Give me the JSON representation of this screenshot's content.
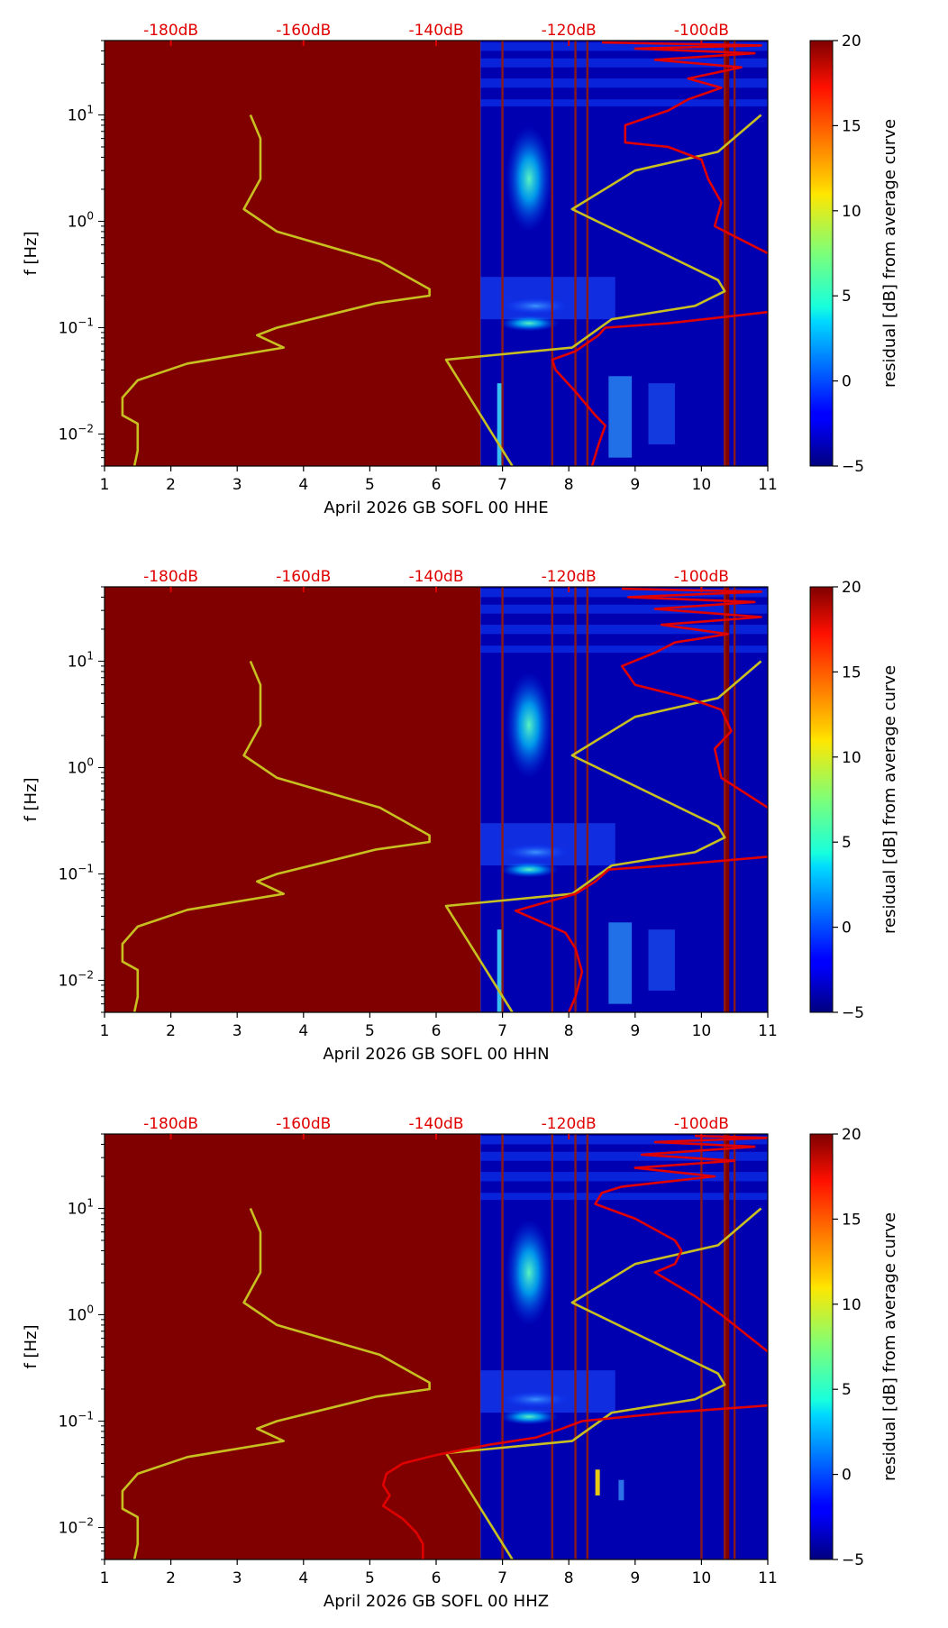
{
  "chart_data": [
    {
      "type": "heatmap",
      "xlabel": "April 2026 GB SOFL 00 HHE",
      "ylabel": "f [Hz]",
      "xlim": [
        1,
        11
      ],
      "ylim": [
        0.005,
        50
      ],
      "yscale": "log",
      "x_ticks": [
        "1",
        "2",
        "3",
        "4",
        "5",
        "6",
        "7",
        "8",
        "9",
        "10",
        "11"
      ],
      "y_ticks": [
        {
          "base": "10",
          "exp": "1",
          "value": 10
        },
        {
          "base": "10",
          "exp": "0",
          "value": 1
        },
        {
          "base": "10",
          "exp": "−1",
          "value": 0.1
        },
        {
          "base": "10",
          "exp": "−2",
          "value": 0.01
        }
      ],
      "top_axis_labels": [
        "-180dB",
        "-160dB",
        "-140dB",
        "-120dB",
        "-100dB"
      ],
      "top_axis_positions": [
        2,
        4,
        6,
        8,
        10
      ],
      "no_data_until_day": 6.67,
      "gap_days": [
        7.0,
        7.75,
        8.1,
        8.28,
        10.35,
        10.5
      ],
      "high_noise_days": [
        10.35,
        10.42
      ],
      "colorbar": {
        "label": "residual [dB] from average curve",
        "min": -5,
        "max": 20,
        "ticks": [
          "20",
          "15",
          "10",
          "5",
          "0",
          "−5"
        ]
      },
      "series": [
        {
          "name": "",
          "color": "#c8c020",
          "points": [
            [
              3.2,
              10
            ],
            [
              3.35,
              6
            ],
            [
              3.35,
              2.5
            ],
            [
              3.1,
              1.3
            ],
            [
              3.6,
              0.8
            ],
            [
              5.15,
              0.42
            ],
            [
              5.9,
              0.23
            ],
            [
              5.9,
              0.2
            ],
            [
              5.1,
              0.17
            ],
            [
              3.6,
              0.1
            ],
            [
              3.3,
              0.085
            ],
            [
              3.7,
              0.065
            ],
            [
              2.25,
              0.046
            ],
            [
              1.5,
              0.032
            ],
            [
              1.27,
              0.022
            ],
            [
              1.27,
              0.015
            ],
            [
              1.5,
              0.0125
            ],
            [
              1.5,
              0.007
            ],
            [
              1.45,
              0.005
            ]
          ]
        },
        {
          "name": "",
          "color": "#c8c020",
          "points": [
            [
              10.9,
              10
            ],
            [
              10.25,
              4.5
            ],
            [
              9.0,
              3.0
            ],
            [
              8.05,
              1.3
            ],
            [
              10.25,
              0.28
            ],
            [
              10.35,
              0.22
            ],
            [
              9.9,
              0.16
            ],
            [
              8.65,
              0.12
            ],
            [
              8.05,
              0.065
            ],
            [
              6.15,
              0.05
            ],
            [
              7.15,
              0.005
            ]
          ]
        },
        {
          "name": "",
          "color": "#e00000",
          "points": [
            [
              11,
              0.14
            ],
            [
              9.5,
              0.11
            ],
            [
              8.55,
              0.1
            ],
            [
              8.45,
              0.085
            ],
            [
              8.1,
              0.06
            ],
            [
              7.75,
              0.05
            ],
            [
              7.8,
              0.04
            ],
            [
              8.1,
              0.025
            ],
            [
              8.4,
              0.015
            ],
            [
              8.55,
              0.012
            ],
            [
              8.45,
              0.008
            ],
            [
              8.35,
              0.005
            ]
          ]
        },
        {
          "name": "",
          "color": "#e00000",
          "points": [
            [
              8.5,
              48
            ],
            [
              10.9,
              45
            ],
            [
              9.0,
              42
            ],
            [
              10.8,
              38
            ],
            [
              9.3,
              33
            ],
            [
              10.6,
              28
            ],
            [
              9.8,
              22
            ],
            [
              10.3,
              18
            ],
            [
              9.8,
              14
            ],
            [
              9.5,
              11
            ],
            [
              8.85,
              8
            ],
            [
              8.85,
              5.5
            ],
            [
              9.5,
              5
            ],
            [
              10.0,
              3.8
            ],
            [
              10.1,
              2.5
            ],
            [
              10.3,
              1.5
            ],
            [
              10.2,
              0.9
            ],
            [
              11,
              0.5
            ]
          ]
        }
      ]
    },
    {
      "type": "heatmap",
      "xlabel": "April 2026 GB SOFL 00 HHN",
      "ylabel": "f [Hz]",
      "xlim": [
        1,
        11
      ],
      "ylim": [
        0.005,
        50
      ],
      "yscale": "log",
      "x_ticks": [
        "1",
        "2",
        "3",
        "4",
        "5",
        "6",
        "7",
        "8",
        "9",
        "10",
        "11"
      ],
      "y_ticks": [
        {
          "base": "10",
          "exp": "1",
          "value": 10
        },
        {
          "base": "10",
          "exp": "0",
          "value": 1
        },
        {
          "base": "10",
          "exp": "−1",
          "value": 0.1
        },
        {
          "base": "10",
          "exp": "−2",
          "value": 0.01
        }
      ],
      "top_axis_labels": [
        "-180dB",
        "-160dB",
        "-140dB",
        "-120dB",
        "-100dB"
      ],
      "top_axis_positions": [
        2,
        4,
        6,
        8,
        10
      ],
      "no_data_until_day": 6.67,
      "gap_days": [
        7.0,
        7.75,
        8.1,
        8.28,
        10.35,
        10.5
      ],
      "high_noise_days": [
        10.35,
        10.42
      ],
      "colorbar": {
        "label": "residual [dB] from average curve",
        "min": -5,
        "max": 20,
        "ticks": [
          "20",
          "15",
          "10",
          "5",
          "0",
          "−5"
        ]
      },
      "series": [
        {
          "name": "",
          "color": "#c8c020",
          "points": [
            [
              3.2,
              10
            ],
            [
              3.35,
              6
            ],
            [
              3.35,
              2.5
            ],
            [
              3.1,
              1.3
            ],
            [
              3.6,
              0.8
            ],
            [
              5.15,
              0.42
            ],
            [
              5.9,
              0.23
            ],
            [
              5.9,
              0.2
            ],
            [
              5.1,
              0.17
            ],
            [
              3.6,
              0.1
            ],
            [
              3.3,
              0.085
            ],
            [
              3.7,
              0.065
            ],
            [
              2.25,
              0.046
            ],
            [
              1.5,
              0.032
            ],
            [
              1.27,
              0.022
            ],
            [
              1.27,
              0.015
            ],
            [
              1.5,
              0.0125
            ],
            [
              1.5,
              0.007
            ],
            [
              1.45,
              0.005
            ]
          ]
        },
        {
          "name": "",
          "color": "#c8c020",
          "points": [
            [
              10.9,
              10
            ],
            [
              10.25,
              4.5
            ],
            [
              9.0,
              3.0
            ],
            [
              8.05,
              1.3
            ],
            [
              10.25,
              0.28
            ],
            [
              10.35,
              0.22
            ],
            [
              9.9,
              0.16
            ],
            [
              8.65,
              0.12
            ],
            [
              8.05,
              0.065
            ],
            [
              6.15,
              0.05
            ],
            [
              7.15,
              0.005
            ]
          ]
        },
        {
          "name": "",
          "color": "#e00000",
          "points": [
            [
              11,
              0.145
            ],
            [
              9.5,
              0.12
            ],
            [
              8.6,
              0.11
            ],
            [
              8.4,
              0.085
            ],
            [
              8.1,
              0.065
            ],
            [
              7.2,
              0.045
            ],
            [
              7.6,
              0.035
            ],
            [
              7.95,
              0.028
            ],
            [
              8.1,
              0.02
            ],
            [
              8.2,
              0.012
            ],
            [
              8.1,
              0.007
            ],
            [
              8.0,
              0.005
            ]
          ]
        },
        {
          "name": "",
          "color": "#e00000",
          "points": [
            [
              8.8,
              48
            ],
            [
              10.9,
              45
            ],
            [
              8.9,
              40
            ],
            [
              10.8,
              36
            ],
            [
              9.3,
              31
            ],
            [
              10.9,
              26
            ],
            [
              9.4,
              22
            ],
            [
              10.4,
              18
            ],
            [
              9.6,
              15
            ],
            [
              9.3,
              12
            ],
            [
              8.8,
              9
            ],
            [
              9.0,
              6
            ],
            [
              9.8,
              4.5
            ],
            [
              10.3,
              3.5
            ],
            [
              10.45,
              2.2
            ],
            [
              10.2,
              1.5
            ],
            [
              10.3,
              0.8
            ],
            [
              11,
              0.42
            ]
          ]
        }
      ]
    },
    {
      "type": "heatmap",
      "xlabel": "April 2026 GB SOFL 00 HHZ",
      "ylabel": "f [Hz]",
      "xlim": [
        1,
        11
      ],
      "ylim": [
        0.005,
        50
      ],
      "yscale": "log",
      "x_ticks": [
        "1",
        "2",
        "3",
        "4",
        "5",
        "6",
        "7",
        "8",
        "9",
        "10",
        "11"
      ],
      "y_ticks": [
        {
          "base": "10",
          "exp": "1",
          "value": 10
        },
        {
          "base": "10",
          "exp": "0",
          "value": 1
        },
        {
          "base": "10",
          "exp": "−1",
          "value": 0.1
        },
        {
          "base": "10",
          "exp": "−2",
          "value": 0.01
        }
      ],
      "top_axis_labels": [
        "-180dB",
        "-160dB",
        "-140dB",
        "-120dB",
        "-100dB"
      ],
      "top_axis_positions": [
        2,
        4,
        6,
        8,
        10
      ],
      "no_data_until_day": 6.67,
      "gap_days": [
        7.0,
        7.75,
        8.1,
        8.28,
        10.0,
        10.35,
        10.5
      ],
      "high_noise_days": [
        10.35,
        10.42
      ],
      "colorbar": {
        "label": "residual [dB] from average curve",
        "min": -5,
        "max": 20,
        "ticks": [
          "20",
          "15",
          "10",
          "5",
          "0",
          "−5"
        ]
      },
      "series": [
        {
          "name": "",
          "color": "#c8c020",
          "points": [
            [
              3.2,
              10
            ],
            [
              3.35,
              6
            ],
            [
              3.35,
              2.5
            ],
            [
              3.1,
              1.3
            ],
            [
              3.6,
              0.8
            ],
            [
              5.15,
              0.42
            ],
            [
              5.9,
              0.23
            ],
            [
              5.9,
              0.2
            ],
            [
              5.1,
              0.17
            ],
            [
              3.6,
              0.1
            ],
            [
              3.3,
              0.085
            ],
            [
              3.7,
              0.065
            ],
            [
              2.25,
              0.046
            ],
            [
              1.5,
              0.032
            ],
            [
              1.27,
              0.022
            ],
            [
              1.27,
              0.015
            ],
            [
              1.5,
              0.0125
            ],
            [
              1.5,
              0.007
            ],
            [
              1.45,
              0.005
            ]
          ]
        },
        {
          "name": "",
          "color": "#c8c020",
          "points": [
            [
              10.9,
              10
            ],
            [
              10.25,
              4.5
            ],
            [
              9.0,
              3.0
            ],
            [
              8.05,
              1.3
            ],
            [
              10.25,
              0.28
            ],
            [
              10.35,
              0.22
            ],
            [
              9.9,
              0.16
            ],
            [
              8.65,
              0.12
            ],
            [
              8.05,
              0.065
            ],
            [
              6.15,
              0.05
            ],
            [
              7.15,
              0.005
            ]
          ]
        },
        {
          "name": "",
          "color": "#e00000",
          "points": [
            [
              11,
              0.14
            ],
            [
              9.5,
              0.12
            ],
            [
              8.2,
              0.1
            ],
            [
              7.9,
              0.085
            ],
            [
              7.5,
              0.07
            ],
            [
              6.8,
              0.06
            ],
            [
              6.0,
              0.048
            ],
            [
              5.5,
              0.04
            ],
            [
              5.25,
              0.032
            ],
            [
              5.2,
              0.025
            ],
            [
              5.3,
              0.02
            ],
            [
              5.2,
              0.016
            ],
            [
              5.5,
              0.012
            ],
            [
              5.7,
              0.009
            ],
            [
              5.8,
              0.007
            ],
            [
              5.8,
              0.005
            ]
          ]
        },
        {
          "name": "",
          "color": "#e00000",
          "points": [
            [
              9.9,
              48
            ],
            [
              11,
              46
            ],
            [
              9.3,
              42
            ],
            [
              10.8,
              38
            ],
            [
              9.1,
              32
            ],
            [
              10.5,
              28
            ],
            [
              9.0,
              24
            ],
            [
              10.2,
              20
            ],
            [
              8.8,
              16
            ],
            [
              8.5,
              14
            ],
            [
              8.4,
              11
            ],
            [
              9.0,
              8
            ],
            [
              9.6,
              5
            ],
            [
              9.7,
              4
            ],
            [
              9.6,
              3
            ],
            [
              9.3,
              2.5
            ],
            [
              9.9,
              1.5
            ],
            [
              10.3,
              1.0
            ],
            [
              11,
              0.45
            ]
          ]
        }
      ]
    }
  ]
}
